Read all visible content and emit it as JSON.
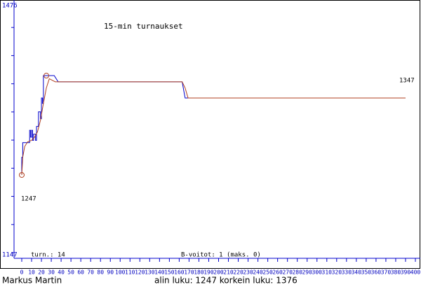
{
  "chart_data": {
    "type": "line",
    "title": "15-min turnaukset",
    "ylim": [
      1147,
      1476
    ],
    "xlim": [
      0,
      400
    ],
    "xticks": [
      0,
      10,
      20,
      30,
      40,
      50,
      60,
      70,
      80,
      90,
      100,
      110,
      120,
      130,
      140,
      150,
      160,
      170,
      180,
      190,
      200,
      210,
      220,
      230,
      240,
      250,
      260,
      270,
      280,
      290,
      300,
      310,
      320,
      330,
      340,
      350,
      360,
      370,
      380,
      390,
      400
    ],
    "series": [
      {
        "color": "#0000cc",
        "x": [
          0,
          0,
          1,
          1,
          8,
          8,
          9,
          9,
          10,
          10,
          11,
          11,
          12,
          12,
          14,
          14,
          15,
          15,
          17,
          17,
          19,
          19,
          20,
          20,
          21,
          21,
          22,
          22,
          25,
          33,
          37,
          163,
          166,
          390
        ],
        "values": [
          1247,
          1270,
          1270,
          1289,
          1289,
          1305,
          1305,
          1296,
          1296,
          1305,
          1305,
          1292,
          1292,
          1300,
          1300,
          1292,
          1292,
          1310,
          1310,
          1329,
          1329,
          1320,
          1320,
          1347,
          1347,
          1340,
          1340,
          1376,
          1376,
          1376,
          1368,
          1368,
          1347,
          1347
        ]
      },
      {
        "color": "#b04020",
        "x": [
          0,
          1,
          3,
          6,
          10,
          13,
          16,
          19,
          22,
          25,
          28,
          31,
          34,
          40,
          163,
          166,
          169,
          390
        ],
        "values": [
          1247,
          1270,
          1284,
          1290,
          1292,
          1296,
          1303,
          1318,
          1340,
          1360,
          1372,
          1370,
          1368,
          1368,
          1368,
          1360,
          1347,
          1347
        ]
      }
    ],
    "markers": [
      {
        "x": 0,
        "value": 1247
      },
      {
        "x": 25,
        "value": 1376
      }
    ],
    "annotations": {
      "start_label": "1247",
      "end_label": "1347",
      "tournaments": "turn.: 14",
      "b_wins": "B-voitot: 1 (maks. 0)"
    },
    "footer": {
      "name": "Markus Martin",
      "stats": "alin luku: 1247  korkein luku: 1376"
    }
  }
}
